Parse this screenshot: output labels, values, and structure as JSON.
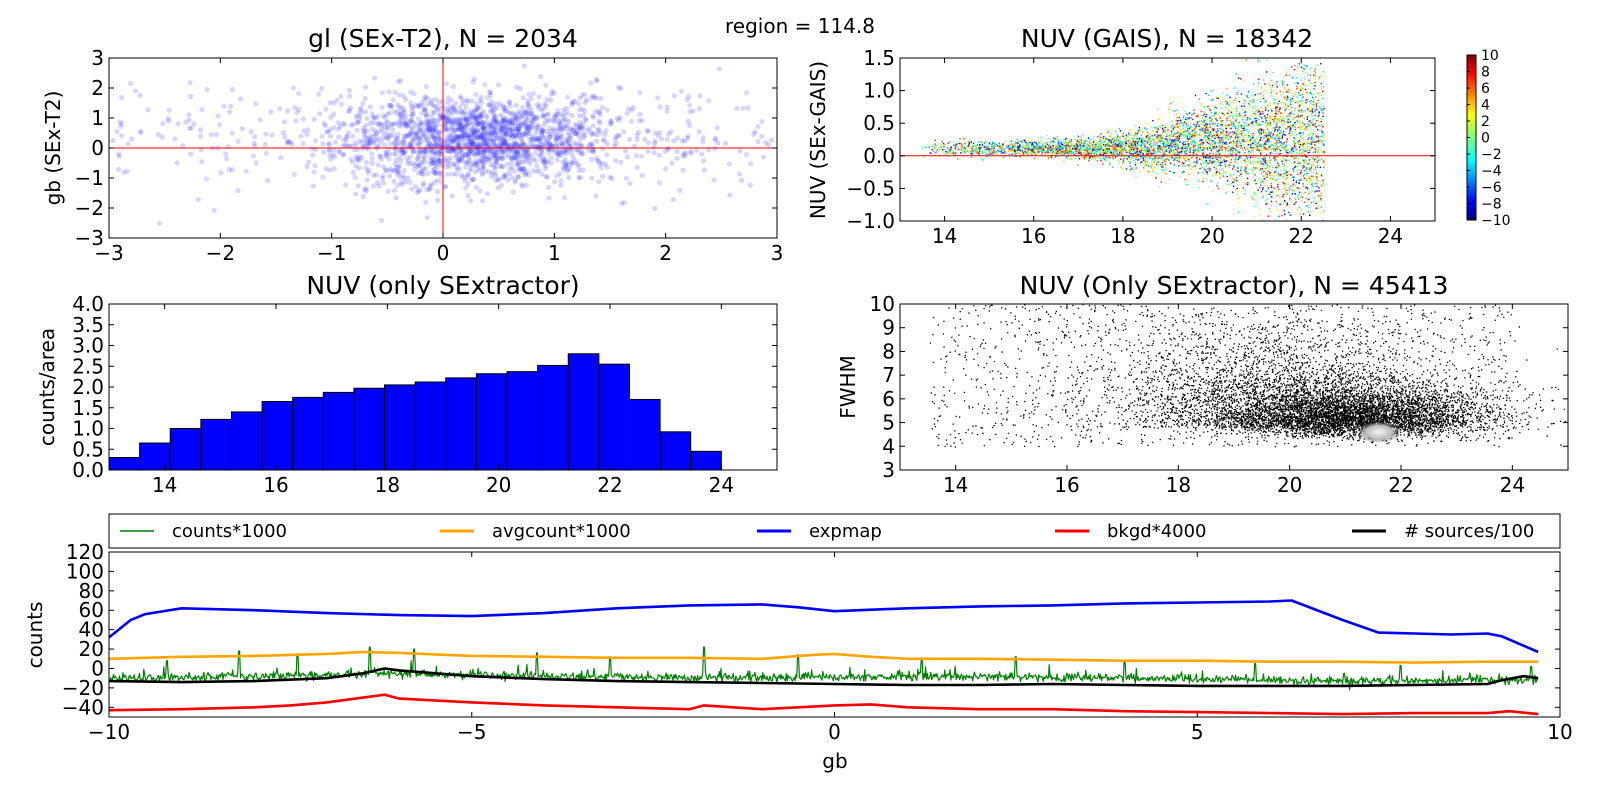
{
  "figure": {
    "suptitle": "region = 114.8"
  },
  "chart_data": [
    {
      "id": "gl-scatter",
      "type": "scatter",
      "title": "gl (SEx-T2), N = 2034",
      "xlabel": "",
      "ylabel": "gb (SEx-T2)",
      "xlim": [
        -3,
        3
      ],
      "ylim": [
        -3,
        3
      ],
      "xticks": [
        -3,
        -2,
        -1,
        0,
        1,
        2,
        3
      ],
      "yticks": [
        -3,
        -2,
        -1,
        0,
        1,
        2,
        3
      ],
      "reference_lines": {
        "x": 0,
        "y": 0,
        "color": "#ff0000"
      },
      "n_points": 2034,
      "cloud": {
        "x_center": 0.35,
        "x_spread": 0.65,
        "y_center": 0.3,
        "y_spread": 0.75
      },
      "point_color": "#3333ff"
    },
    {
      "id": "nuv-gais",
      "type": "scatter",
      "title": "NUV (GAIS), N = 18342",
      "xlabel": "",
      "ylabel": "NUV (SEx-GAIS)",
      "xlim": [
        13,
        25
      ],
      "ylim": [
        -1.0,
        1.5
      ],
      "xticks": [
        14,
        16,
        18,
        20,
        22,
        24
      ],
      "yticks": [
        -1.0,
        -0.5,
        0.0,
        0.5,
        1.0,
        1.5
      ],
      "reference_lines": {
        "y": 0.0,
        "color": "#ff0000"
      },
      "n_points": 18342,
      "colorbar": {
        "ticks": [
          10,
          8,
          6,
          4,
          2,
          0,
          -2,
          -4,
          -6,
          -8,
          -10
        ],
        "range": [
          -10,
          10
        ],
        "colormap": "jet"
      }
    },
    {
      "id": "nuv-hist",
      "type": "bar",
      "title": "NUV (only SExtractor)",
      "xlabel": "",
      "ylabel": "counts/area",
      "xlim": [
        13,
        25
      ],
      "ylim": [
        0.0,
        4.0
      ],
      "xticks": [
        14,
        16,
        18,
        20,
        22,
        24
      ],
      "yticks": [
        0.0,
        0.5,
        1.0,
        1.5,
        2.0,
        2.5,
        3.0,
        3.5,
        4.0
      ],
      "bin_edges": [
        13.0,
        13.55,
        14.1,
        14.65,
        15.2,
        15.75,
        16.3,
        16.85,
        17.4,
        17.95,
        18.5,
        19.05,
        19.6,
        20.15,
        20.7,
        21.25,
        21.8,
        22.35,
        22.9,
        23.45,
        24.0
      ],
      "values": [
        0.3,
        0.65,
        1.0,
        1.22,
        1.4,
        1.65,
        1.75,
        1.87,
        1.97,
        2.05,
        2.12,
        2.22,
        2.32,
        2.37,
        2.52,
        2.8,
        2.55,
        1.7,
        0.92,
        0.45
      ],
      "bar_color": "#0000ff"
    },
    {
      "id": "nuv-fwhm",
      "type": "scatter",
      "title": "NUV (Only SExtractor),  N = 45413",
      "xlabel": "",
      "ylabel": "FWHM",
      "xlim": [
        13,
        25
      ],
      "ylim": [
        3,
        10
      ],
      "xticks": [
        14,
        16,
        18,
        20,
        22,
        24
      ],
      "yticks": [
        3,
        4,
        5,
        6,
        7,
        8,
        9,
        10
      ],
      "n_points": 45413,
      "dense_core": {
        "x": 21.6,
        "y": 4.6
      }
    },
    {
      "id": "counts-lines",
      "type": "line",
      "title": "",
      "xlabel": "gb",
      "ylabel": "counts",
      "xlim": [
        -10,
        10
      ],
      "ylim": [
        -50,
        120
      ],
      "xticks": [
        -10,
        -5,
        0,
        5,
        10
      ],
      "yticks": [
        -40,
        -20,
        0,
        20,
        40,
        60,
        80,
        100,
        120
      ],
      "legend": {
        "placement": "top (separate box)",
        "ncol": 5
      },
      "series": [
        {
          "name": "counts*1000",
          "color": "#008000",
          "style": "spiky",
          "x": [
            -10,
            -9,
            -8,
            -7,
            -6,
            -5,
            -4,
            -3,
            -2,
            -1,
            0,
            1,
            2,
            3,
            4,
            5,
            6,
            7,
            8,
            9,
            9.7
          ],
          "y": [
            -11,
            -9,
            -8,
            -7,
            -5,
            -7,
            -8,
            -9,
            -9,
            -10,
            -9,
            -9,
            -8,
            -9,
            -10,
            -11,
            -12,
            -13,
            -13,
            -12,
            -12
          ],
          "peaks": [
            [
              -9.2,
              8
            ],
            [
              -8.2,
              18
            ],
            [
              -7.4,
              15
            ],
            [
              -6.4,
              22
            ],
            [
              -5.8,
              20
            ],
            [
              -4.1,
              16
            ],
            [
              -3.1,
              12
            ],
            [
              -1.8,
              22
            ],
            [
              -0.5,
              14
            ],
            [
              1.2,
              10
            ],
            [
              2.5,
              12
            ],
            [
              4.0,
              8
            ],
            [
              5.8,
              5
            ],
            [
              7.8,
              3
            ],
            [
              9.6,
              2
            ]
          ]
        },
        {
          "name": "avgcount*1000",
          "color": "#ffa500",
          "x": [
            -10,
            -9,
            -8,
            -7,
            -6.5,
            -6,
            -5,
            -4,
            -3,
            -2,
            -1,
            -0.3,
            0,
            0.5,
            1,
            2,
            3,
            4,
            5,
            6,
            7,
            8,
            9,
            9.7
          ],
          "y": [
            10,
            12,
            13,
            15,
            17,
            16,
            13,
            12,
            11,
            11,
            10,
            14,
            15,
            12,
            10,
            10,
            9,
            8,
            8,
            7,
            7,
            6,
            7,
            7
          ]
        },
        {
          "name": "expmap",
          "color": "#0000ff",
          "x": [
            -10,
            -9.7,
            -9.5,
            -9,
            -8,
            -7,
            -6,
            -5,
            -4,
            -3,
            -2,
            -1,
            -0.5,
            0,
            1,
            2,
            3,
            4,
            5,
            6,
            6.3,
            7,
            7.5,
            8,
            8.5,
            9,
            9.2,
            9.7
          ],
          "y": [
            32,
            50,
            56,
            62,
            60,
            57,
            55,
            54,
            57,
            62,
            65,
            66,
            63,
            59,
            62,
            64,
            65,
            67,
            68,
            69,
            70,
            50,
            37,
            36,
            35,
            36,
            33,
            17
          ]
        },
        {
          "name": "bkgd*4000",
          "color": "#ff0000",
          "x": [
            -10,
            -9,
            -8,
            -7.5,
            -7,
            -6.5,
            -6.2,
            -6,
            -5,
            -4,
            -3,
            -2,
            -1.8,
            -1,
            0,
            0.5,
            1,
            2,
            3,
            4,
            5,
            6,
            7,
            8,
            9,
            9.3,
            9.7
          ],
          "y": [
            -43,
            -42,
            -40,
            -38,
            -35,
            -30,
            -27,
            -31,
            -35,
            -38,
            -40,
            -42,
            -38,
            -42,
            -38,
            -37,
            -40,
            -42,
            -42,
            -44,
            -45,
            -46,
            -47,
            -46,
            -46,
            -44,
            -47
          ]
        },
        {
          "name": "# sources/100",
          "color": "#000000",
          "x": [
            -10,
            -9,
            -8,
            -7,
            -6.5,
            -6.2,
            -6,
            -5.5,
            -5,
            -4,
            -3,
            -2,
            -1,
            0,
            1,
            2,
            3,
            4,
            5,
            6,
            7,
            8,
            9,
            9.2,
            9.5,
            9.7
          ],
          "y": [
            -13,
            -14,
            -13,
            -10,
            -5,
            0,
            -2,
            -5,
            -8,
            -11,
            -13,
            -14,
            -15,
            -16,
            -17,
            -17,
            -16,
            -17,
            -18,
            -18,
            -18,
            -17,
            -16,
            -12,
            -8,
            -10
          ]
        }
      ]
    }
  ]
}
